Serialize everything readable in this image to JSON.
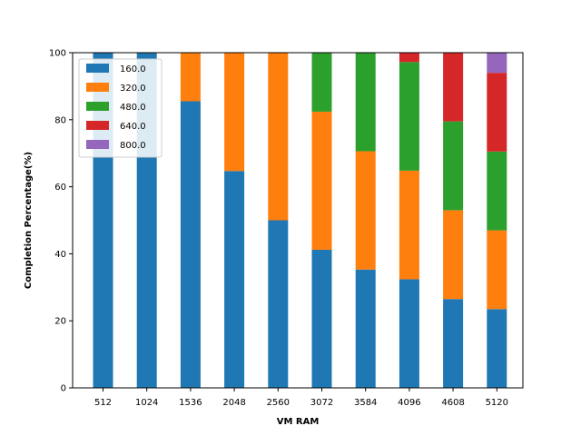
{
  "chart_data": {
    "type": "bar",
    "stacked": true,
    "title": "",
    "xlabel": "VM RAM",
    "ylabel": "Completion Percentage(%)",
    "ylim": [
      0,
      100
    ],
    "yticks": [
      0,
      20,
      40,
      60,
      80,
      100
    ],
    "grid": false,
    "legend_position": "top-left",
    "categories": [
      "512",
      "1024",
      "1536",
      "2048",
      "2560",
      "3072",
      "3584",
      "4096",
      "4608",
      "5120"
    ],
    "series": [
      {
        "name": "160.0",
        "color": "#1f77b4",
        "values": [
          100,
          100,
          85.5,
          64.7,
          50,
          41.2,
          35.3,
          32.4,
          26.5,
          23.5
        ]
      },
      {
        "name": "320.0",
        "color": "#ff7f0e",
        "values": [
          0,
          0,
          14.5,
          35.3,
          50,
          41.2,
          35.3,
          32.4,
          26.5,
          23.5
        ]
      },
      {
        "name": "480.0",
        "color": "#2ca02c",
        "values": [
          0,
          0,
          0,
          0,
          0,
          17.6,
          29.4,
          32.4,
          26.5,
          23.5
        ]
      },
      {
        "name": "640.0",
        "color": "#d62728",
        "values": [
          0,
          0,
          0,
          0,
          0,
          0,
          0,
          2.8,
          20.5,
          23.5
        ]
      },
      {
        "name": "800.0",
        "color": "#9467bd",
        "values": [
          0,
          0,
          0,
          0,
          0,
          0,
          0,
          0,
          0,
          6.0
        ]
      }
    ]
  }
}
